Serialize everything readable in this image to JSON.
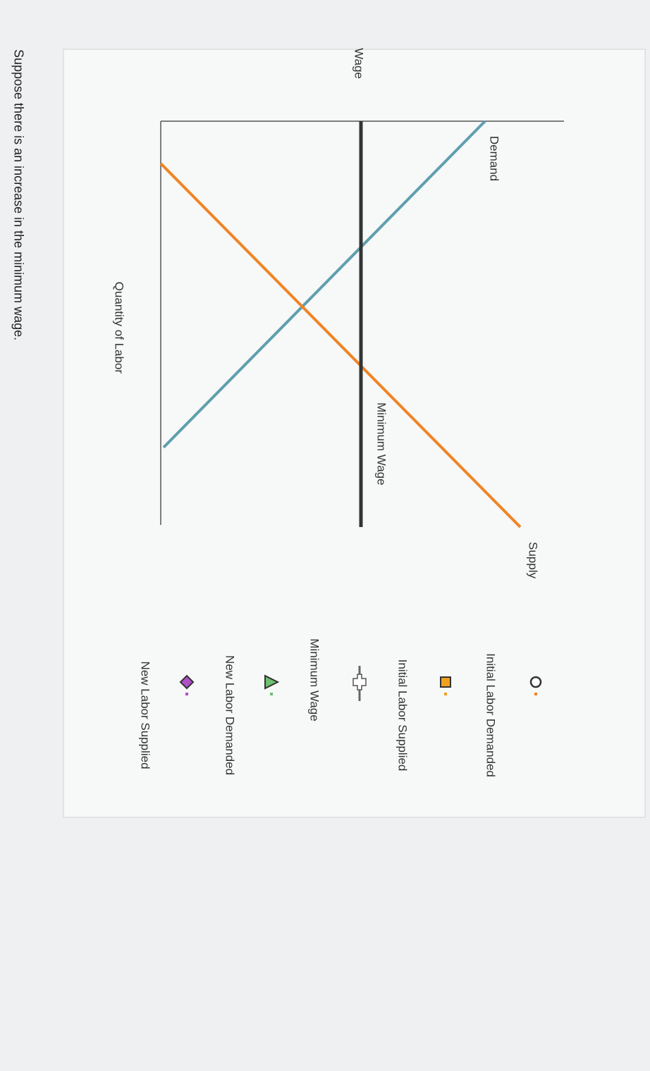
{
  "graph": {
    "axis_labels": {
      "y": "Wage",
      "x": "Quantity of Labor"
    },
    "curves": [
      {
        "label": "Demand"
      },
      {
        "label": "Supply"
      },
      {
        "label": "Minimum Wage"
      }
    ]
  },
  "legend": [
    {
      "label": "Initial Labor Demanded"
    },
    {
      "label": "Initial Labor Supplied"
    },
    {
      "label": "Minimum Wage"
    },
    {
      "label": "New Labor Demanded"
    },
    {
      "label": "New Labor Supplied"
    }
  ],
  "prompt": "Suppose there is an increase in the minimum wage."
}
